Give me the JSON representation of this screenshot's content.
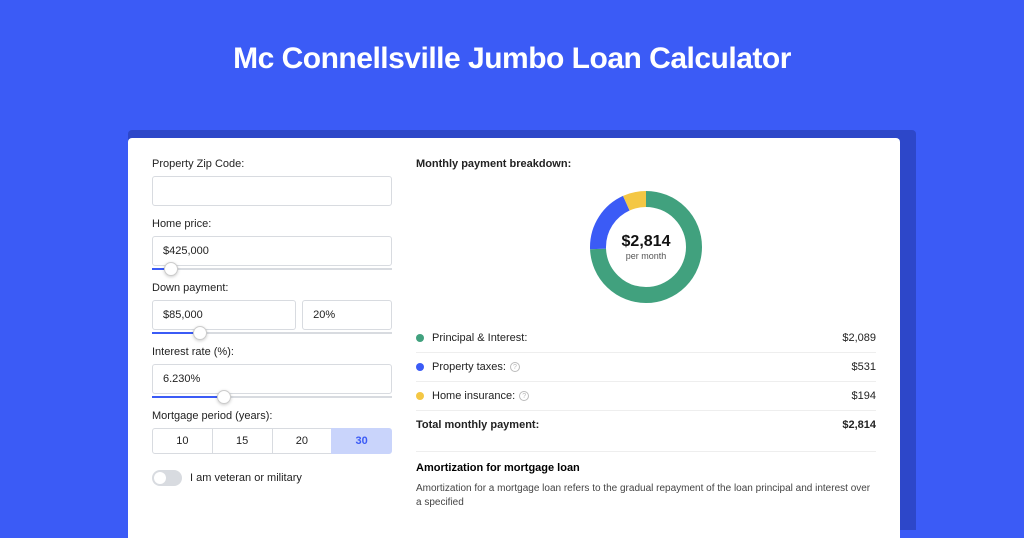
{
  "page": {
    "title": "Mc Connellsville Jumbo Loan Calculator",
    "background_color": "#3b5bf6",
    "shadow_color": "#2d47c9"
  },
  "form": {
    "zip": {
      "label": "Property Zip Code:",
      "value": ""
    },
    "home_price": {
      "label": "Home price:",
      "value": "$425,000",
      "slider_pct": 8
    },
    "down_payment": {
      "label": "Down payment:",
      "amount": "$85,000",
      "pct": "20%",
      "slider_pct": 20
    },
    "interest_rate": {
      "label": "Interest rate (%):",
      "value": "6.230%",
      "slider_pct": 30
    },
    "mortgage_period": {
      "label": "Mortgage period (years):",
      "options": [
        "10",
        "15",
        "20",
        "30"
      ],
      "active": "30"
    },
    "veteran": {
      "label": "I am veteran or military",
      "on": false
    }
  },
  "breakdown": {
    "title": "Monthly payment breakdown:",
    "donut": {
      "amount": "$2,814",
      "sub": "per month",
      "segments": [
        {
          "key": "principal_interest",
          "color": "#41a17e",
          "value": 2089
        },
        {
          "key": "property_taxes",
          "color": "#3b5bf6",
          "value": 531
        },
        {
          "key": "home_insurance",
          "color": "#f4c744",
          "value": 194
        }
      ],
      "stroke_width": 16
    },
    "rows": [
      {
        "dot": "#41a17e",
        "label": "Principal & Interest:",
        "info": false,
        "value": "$2,089"
      },
      {
        "dot": "#3b5bf6",
        "label": "Property taxes:",
        "info": true,
        "value": "$531"
      },
      {
        "dot": "#f4c744",
        "label": "Home insurance:",
        "info": true,
        "value": "$194"
      }
    ],
    "total": {
      "label": "Total monthly payment:",
      "value": "$2,814"
    }
  },
  "amortization": {
    "title": "Amortization for mortgage loan",
    "text": "Amortization for a mortgage loan refers to the gradual repayment of the loan principal and interest over a specified"
  }
}
